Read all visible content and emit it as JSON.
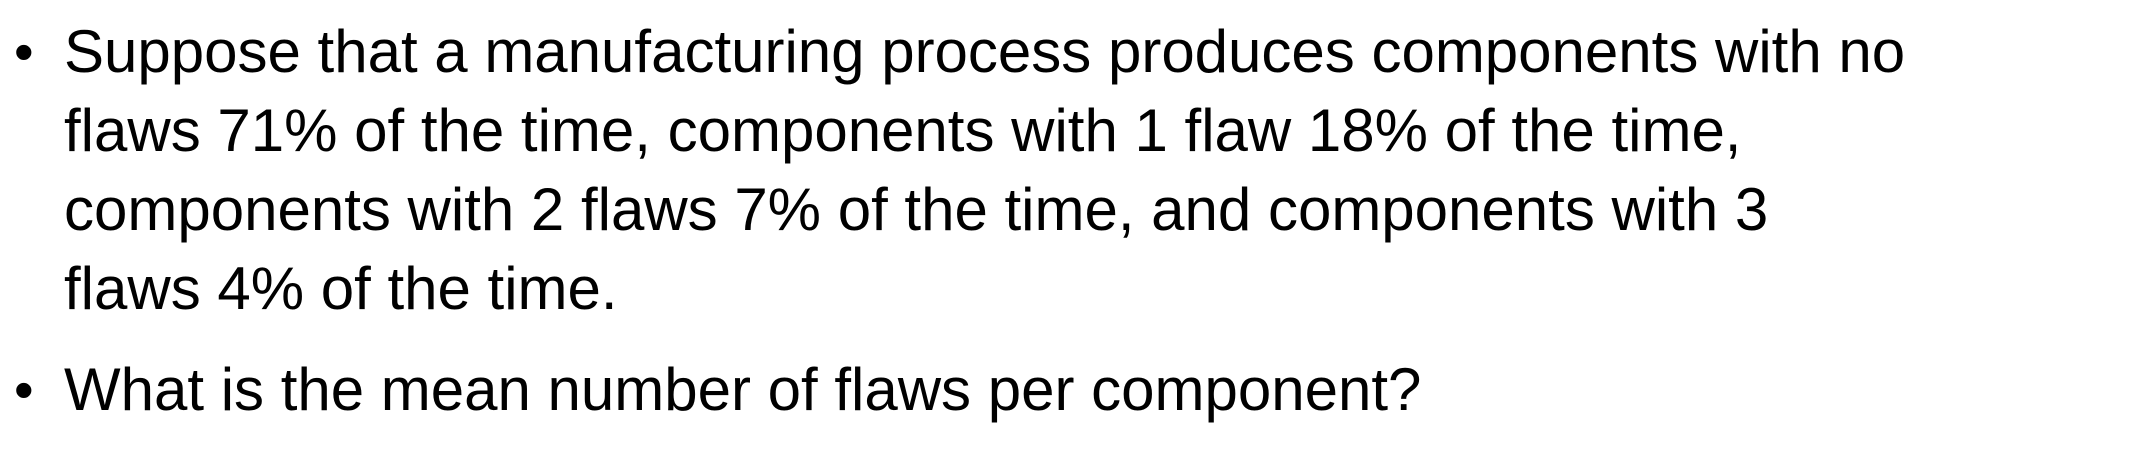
{
  "bullets": [
    {
      "marker": "•",
      "lines": [
        "Suppose that a manufacturing process produces components with no",
        "flaws 71% of the time, components with 1 flaw 18% of the time,",
        "components with 2 flaws 7% of the time, and components with 3",
        "flaws 4% of the time."
      ]
    },
    {
      "marker": "•",
      "lines": [
        "What is the mean number of flaws per component?"
      ]
    }
  ]
}
